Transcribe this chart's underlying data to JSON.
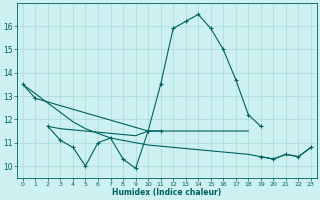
{
  "xlabel": "Humidex (Indice chaleur)",
  "color": "#006060",
  "bg_color": "#cdf0f0",
  "grid_color": "#aad8d8",
  "ylim": [
    9.5,
    17.0
  ],
  "yticks": [
    10,
    11,
    12,
    13,
    14,
    15,
    16
  ],
  "xticks": [
    0,
    1,
    2,
    3,
    4,
    5,
    6,
    7,
    8,
    9,
    10,
    11,
    12,
    13,
    14,
    15,
    16,
    17,
    18,
    19,
    20,
    21,
    22,
    23
  ],
  "curve_main": {
    "x": [
      0,
      1,
      10,
      11,
      12,
      13,
      14,
      15,
      16,
      17,
      18,
      19
    ],
    "y": [
      13.5,
      12.9,
      11.5,
      13.5,
      15.9,
      16.2,
      16.5,
      15.9,
      15.0,
      13.7,
      12.2,
      11.7
    ]
  },
  "curve_zigzag": {
    "x": [
      2,
      3,
      4,
      5,
      6,
      7,
      8,
      9,
      10,
      11
    ],
    "y": [
      11.7,
      11.1,
      10.8,
      10.0,
      11.0,
      11.2,
      10.3,
      9.9,
      11.5,
      11.5
    ]
  },
  "curve_flat": {
    "x": [
      2,
      3,
      4,
      5,
      6,
      7,
      8,
      9,
      10,
      11,
      12,
      13,
      14,
      15,
      16,
      17,
      18
    ],
    "y": [
      11.7,
      11.6,
      11.55,
      11.5,
      11.45,
      11.4,
      11.35,
      11.3,
      11.5,
      11.5,
      11.5,
      11.5,
      11.5,
      11.5,
      11.5,
      11.5,
      11.5
    ]
  },
  "curve_diag": {
    "x": [
      0,
      1,
      2,
      3,
      4,
      5,
      6,
      7,
      8,
      9,
      10,
      11,
      12,
      13,
      14,
      15,
      16,
      17,
      18,
      19,
      20,
      21,
      22,
      23
    ],
    "y": [
      13.5,
      13.1,
      12.7,
      12.3,
      11.9,
      11.6,
      11.4,
      11.2,
      11.1,
      11.0,
      10.9,
      10.85,
      10.8,
      10.75,
      10.7,
      10.65,
      10.6,
      10.55,
      10.5,
      10.4,
      10.3,
      10.5,
      10.4,
      10.8
    ]
  },
  "curve_end": {
    "x": [
      19,
      20,
      21,
      22,
      23
    ],
    "y": [
      10.4,
      10.3,
      10.5,
      10.4,
      10.8
    ]
  }
}
